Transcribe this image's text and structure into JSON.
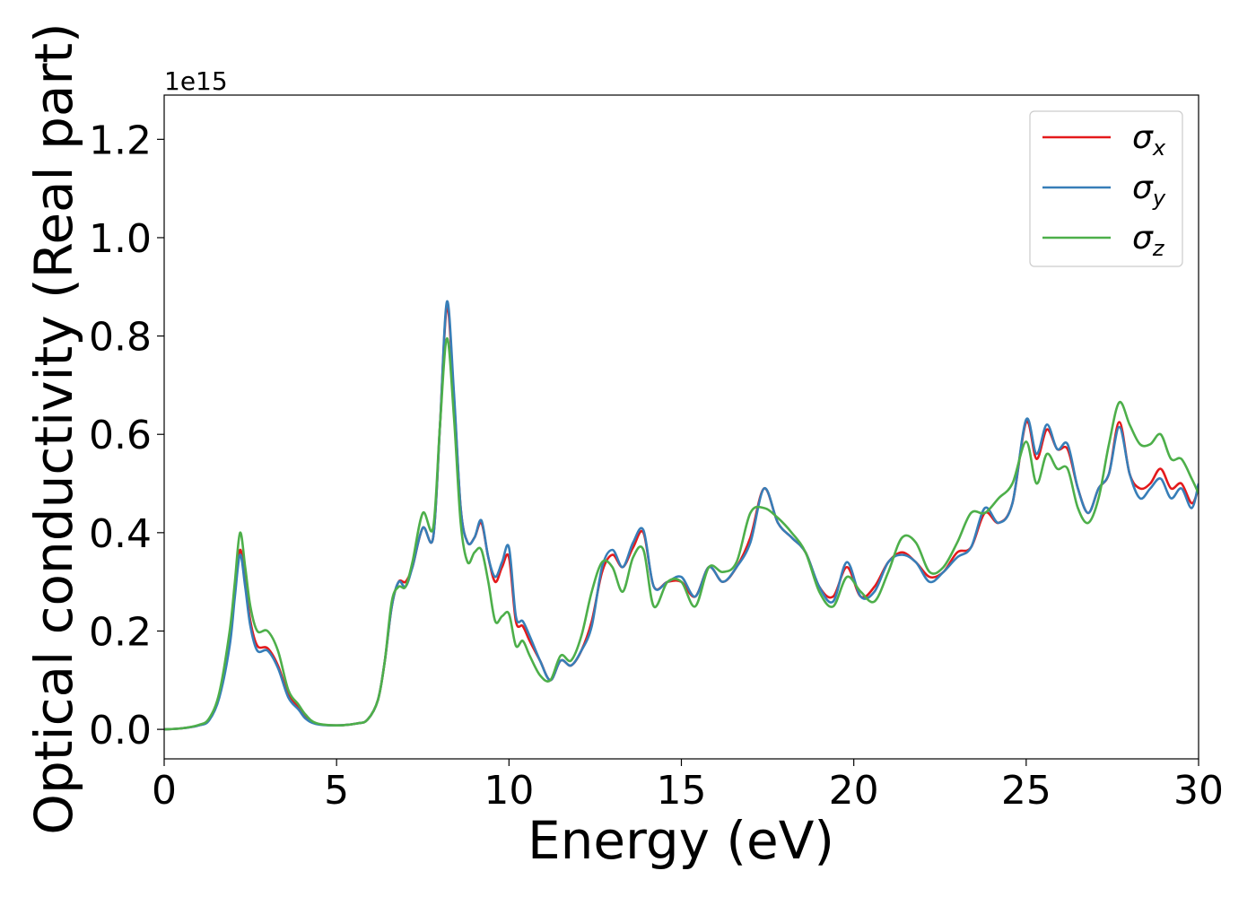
{
  "chart_data": {
    "type": "line",
    "title": "",
    "xlabel": "Energy (eV)",
    "ylabel": "Optical conductivity (Real part)",
    "y_offset_label": "1e15",
    "xlim": [
      0,
      30
    ],
    "ylim": [
      -0.06,
      1.29
    ],
    "x_ticks": [
      0,
      5,
      10,
      15,
      20,
      25,
      30
    ],
    "x_tick_labels": [
      "0",
      "5",
      "10",
      "15",
      "20",
      "25",
      "30"
    ],
    "y_ticks": [
      0.0,
      0.2,
      0.4,
      0.6,
      0.8,
      1.0,
      1.2
    ],
    "y_tick_labels": [
      "0.0",
      "0.2",
      "0.4",
      "0.6",
      "0.8",
      "1.0",
      "1.2"
    ],
    "grid": false,
    "legend_position": "top-right",
    "x": [
      0,
      0.5,
      1,
      1.3,
      1.6,
      1.9,
      2.05,
      2.2,
      2.35,
      2.5,
      2.7,
      3,
      3.3,
      3.6,
      3.9,
      4.1,
      4.4,
      5,
      5.6,
      5.9,
      6.2,
      6.4,
      6.6,
      6.8,
      7,
      7.2,
      7.5,
      7.8,
      8,
      8.2,
      8.4,
      8.6,
      8.8,
      9,
      9.2,
      9.4,
      9.6,
      9.8,
      10,
      10.2,
      10.4,
      10.6,
      10.9,
      11.2,
      11.5,
      11.8,
      12.1,
      12.4,
      12.7,
      13,
      13.3,
      13.6,
      13.9,
      14.2,
      14.6,
      15,
      15.4,
      15.8,
      16.2,
      16.6,
      17,
      17.4,
      17.8,
      18.2,
      18.6,
      19,
      19.4,
      19.8,
      20.2,
      20.6,
      21,
      21.4,
      21.8,
      22.2,
      22.6,
      23,
      23.4,
      23.8,
      24.2,
      24.6,
      25,
      25.3,
      25.6,
      25.9,
      26.2,
      26.5,
      26.8,
      27.1,
      27.4,
      27.7,
      28,
      28.3,
      28.6,
      28.9,
      29.2,
      29.5,
      29.8,
      30
    ],
    "series": [
      {
        "name": "σx",
        "color": "#e41a1c",
        "values": [
          0.0,
          0.002,
          0.008,
          0.02,
          0.07,
          0.18,
          0.28,
          0.365,
          0.3,
          0.22,
          0.17,
          0.165,
          0.13,
          0.07,
          0.045,
          0.025,
          0.012,
          0.008,
          0.012,
          0.02,
          0.06,
          0.14,
          0.25,
          0.3,
          0.3,
          0.33,
          0.41,
          0.39,
          0.62,
          0.86,
          0.68,
          0.45,
          0.38,
          0.39,
          0.42,
          0.35,
          0.3,
          0.33,
          0.35,
          0.22,
          0.21,
          0.18,
          0.14,
          0.1,
          0.14,
          0.13,
          0.16,
          0.22,
          0.32,
          0.355,
          0.33,
          0.37,
          0.4,
          0.29,
          0.3,
          0.3,
          0.27,
          0.33,
          0.3,
          0.33,
          0.39,
          0.49,
          0.42,
          0.39,
          0.36,
          0.29,
          0.27,
          0.33,
          0.27,
          0.29,
          0.34,
          0.36,
          0.34,
          0.31,
          0.32,
          0.36,
          0.37,
          0.44,
          0.42,
          0.46,
          0.625,
          0.55,
          0.61,
          0.57,
          0.57,
          0.49,
          0.44,
          0.49,
          0.52,
          0.625,
          0.52,
          0.49,
          0.5,
          0.53,
          0.49,
          0.5,
          0.46,
          0.49
        ]
      },
      {
        "name": "σy",
        "color": "#377eb8",
        "values": [
          0.0,
          0.002,
          0.008,
          0.018,
          0.065,
          0.17,
          0.27,
          0.355,
          0.29,
          0.21,
          0.16,
          0.16,
          0.125,
          0.065,
          0.04,
          0.022,
          0.011,
          0.008,
          0.012,
          0.02,
          0.06,
          0.14,
          0.25,
          0.3,
          0.29,
          0.33,
          0.41,
          0.39,
          0.62,
          0.87,
          0.69,
          0.45,
          0.38,
          0.39,
          0.425,
          0.35,
          0.31,
          0.34,
          0.37,
          0.23,
          0.22,
          0.19,
          0.14,
          0.1,
          0.14,
          0.13,
          0.16,
          0.21,
          0.33,
          0.365,
          0.33,
          0.38,
          0.405,
          0.29,
          0.3,
          0.31,
          0.27,
          0.33,
          0.3,
          0.33,
          0.38,
          0.49,
          0.42,
          0.39,
          0.36,
          0.29,
          0.26,
          0.34,
          0.27,
          0.28,
          0.34,
          0.355,
          0.34,
          0.3,
          0.32,
          0.35,
          0.37,
          0.45,
          0.42,
          0.46,
          0.63,
          0.56,
          0.62,
          0.57,
          0.58,
          0.49,
          0.44,
          0.49,
          0.52,
          0.615,
          0.52,
          0.47,
          0.49,
          0.51,
          0.47,
          0.49,
          0.45,
          0.5
        ]
      },
      {
        "name": "σz",
        "color": "#4daf4a",
        "values": [
          0.0,
          0.002,
          0.009,
          0.022,
          0.075,
          0.2,
          0.3,
          0.4,
          0.33,
          0.25,
          0.2,
          0.2,
          0.16,
          0.08,
          0.05,
          0.03,
          0.013,
          0.008,
          0.012,
          0.02,
          0.06,
          0.14,
          0.26,
          0.29,
          0.29,
          0.34,
          0.44,
          0.41,
          0.62,
          0.795,
          0.64,
          0.42,
          0.34,
          0.36,
          0.365,
          0.3,
          0.22,
          0.23,
          0.235,
          0.17,
          0.18,
          0.15,
          0.11,
          0.1,
          0.15,
          0.14,
          0.19,
          0.28,
          0.34,
          0.33,
          0.28,
          0.35,
          0.365,
          0.25,
          0.3,
          0.3,
          0.25,
          0.33,
          0.32,
          0.34,
          0.44,
          0.45,
          0.43,
          0.4,
          0.36,
          0.28,
          0.25,
          0.31,
          0.28,
          0.26,
          0.32,
          0.39,
          0.38,
          0.32,
          0.33,
          0.38,
          0.44,
          0.44,
          0.47,
          0.5,
          0.585,
          0.5,
          0.56,
          0.53,
          0.53,
          0.45,
          0.42,
          0.47,
          0.58,
          0.665,
          0.62,
          0.58,
          0.58,
          0.6,
          0.55,
          0.55,
          0.51,
          0.48
        ]
      }
    ]
  }
}
